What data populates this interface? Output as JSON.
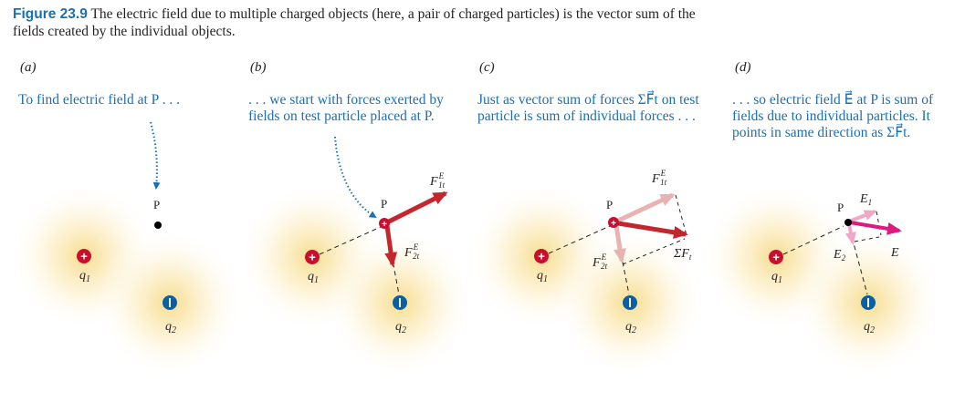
{
  "caption": {
    "label": "Figure 23.9",
    "text": "The electric field due to multiple charged objects (here, a pair of charged particles) is the vector sum of the fields created by the individual objects."
  },
  "panels": [
    {
      "label": "(a)",
      "note": "To find electric field at P . . ."
    },
    {
      "label": "(b)",
      "note": ". . . we start with forces exerted by fields on test particle placed at P."
    },
    {
      "label": "(c)",
      "note": "Just as vector sum of forces ΣF⃗t on test particle is sum of individual forces . . ."
    },
    {
      "label": "(d)",
      "note": ". . . so electric field E⃗ at P is sum of fields due to individual particles. It points in same direction as ΣF⃗t."
    }
  ],
  "symbols": {
    "point": "P",
    "q1": "q",
    "q1_sub": "1",
    "q2": "q",
    "q2_sub": "2",
    "plus": "+",
    "minus": "−",
    "F1t": "F",
    "F1t_sup": "E",
    "F1t_sub": "1t",
    "F2t": "F",
    "F2t_sup": "E",
    "F2t_sub": "2t",
    "sumF": "ΣF",
    "sumF_sub": "t",
    "E": "E",
    "E1": "E",
    "E1_sub": "1",
    "E2": "E",
    "E2_sub": "2"
  },
  "colors": {
    "figure_label": "#1a6fb5",
    "notes": "#1a6fb5",
    "positive_charge": "#c8102e",
    "negative_charge": "#0b5fa5",
    "force_arrow": "#c4262e",
    "faded_force_arrow": "#e8b3b3",
    "field_arrow": "#e0197d",
    "faded_field_arrow": "#f2a6c8",
    "field_glow": "#f6d77a"
  }
}
